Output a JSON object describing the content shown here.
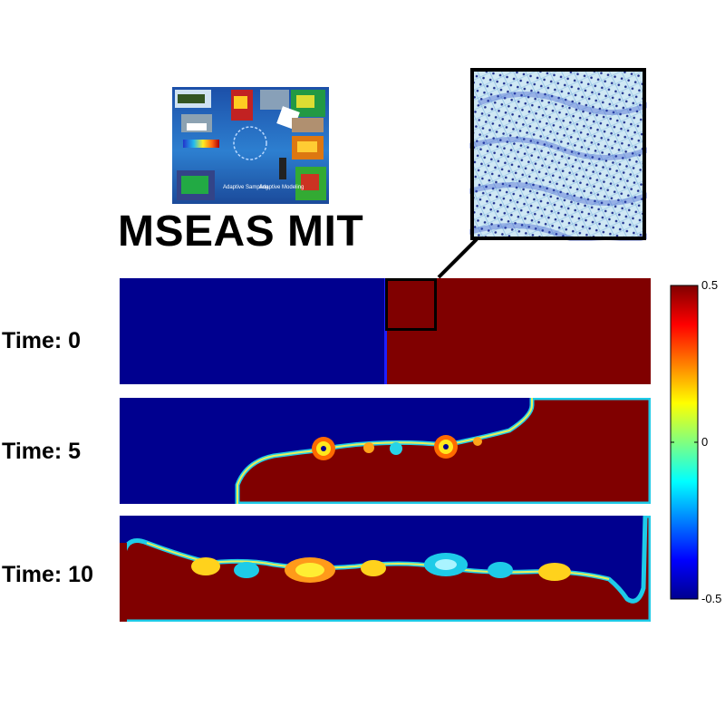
{
  "branding": {
    "title": "MSEAS MIT",
    "poster_captions": [
      "Adaptive Sampling",
      "Adaptive Modeling"
    ]
  },
  "colors": {
    "low": "#00008f",
    "high": "#800000",
    "colormap": "jet"
  },
  "chart_data": {
    "type": "heatmap",
    "field": "lock-exchange / Kelvin-Helmholtz mixing field",
    "panels": [
      {
        "label": "Time: 0",
        "time": 0
      },
      {
        "label": "Time: 5",
        "time": 5
      },
      {
        "label": "Time: 10",
        "time": 10
      }
    ],
    "colorbar": {
      "min": -0.5,
      "max": 0.5,
      "ticks": [
        {
          "value": 0.5,
          "label": "0.5"
        },
        {
          "value": 0,
          "label": "0"
        },
        {
          "value": -0.5,
          "label": "-0.5"
        }
      ]
    },
    "inset": "zoomed computational mesh of the boxed region at Time: 0"
  }
}
